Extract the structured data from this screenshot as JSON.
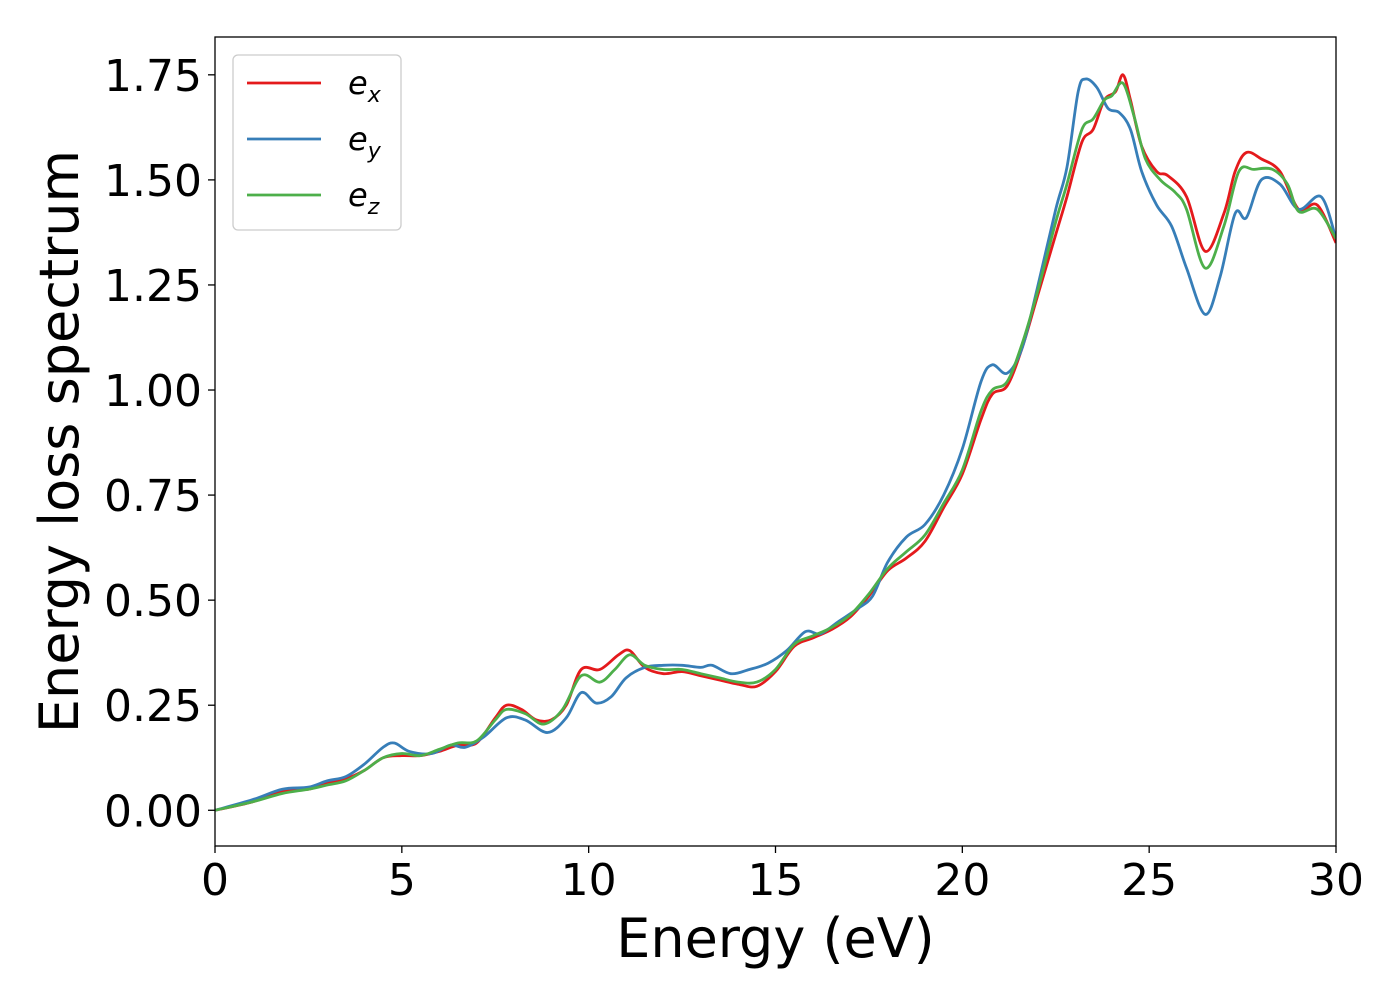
{
  "chart_data": {
    "type": "line",
    "xlabel": "Energy (eV)",
    "ylabel": "Energy loss spectrum",
    "xlim": [
      0,
      30
    ],
    "ylim": [
      -0.085,
      1.84
    ],
    "xticks": [
      0,
      5,
      10,
      15,
      20,
      25,
      30
    ],
    "xtick_labels": [
      "0",
      "5",
      "10",
      "15",
      "20",
      "25",
      "30"
    ],
    "yticks": [
      0.0,
      0.25,
      0.5,
      0.75,
      1.0,
      1.25,
      1.5,
      1.75
    ],
    "ytick_labels": [
      "0.00",
      "0.25",
      "0.50",
      "0.75",
      "1.00",
      "1.25",
      "1.50",
      "1.75"
    ],
    "grid": false,
    "legend_position": "top-left",
    "series": [
      {
        "name": "e",
        "name_sub": "x",
        "color": "#e41a1c",
        "points": [
          [
            0,
            0.0
          ],
          [
            1,
            0.02
          ],
          [
            1.8,
            0.045
          ],
          [
            2.5,
            0.05
          ],
          [
            3,
            0.065
          ],
          [
            3.5,
            0.075
          ],
          [
            4,
            0.095
          ],
          [
            4.5,
            0.125
          ],
          [
            5,
            0.13
          ],
          [
            5.5,
            0.13
          ],
          [
            6,
            0.14
          ],
          [
            6.5,
            0.155
          ],
          [
            7,
            0.16
          ],
          [
            7.5,
            0.22
          ],
          [
            7.8,
            0.25
          ],
          [
            8.2,
            0.24
          ],
          [
            8.6,
            0.215
          ],
          [
            9,
            0.215
          ],
          [
            9.4,
            0.25
          ],
          [
            9.8,
            0.335
          ],
          [
            10.3,
            0.335
          ],
          [
            10.8,
            0.37
          ],
          [
            11.1,
            0.38
          ],
          [
            11.5,
            0.34
          ],
          [
            12,
            0.325
          ],
          [
            12.5,
            0.33
          ],
          [
            13,
            0.32
          ],
          [
            13.5,
            0.31
          ],
          [
            14,
            0.3
          ],
          [
            14.5,
            0.295
          ],
          [
            15,
            0.33
          ],
          [
            15.5,
            0.39
          ],
          [
            16,
            0.41
          ],
          [
            16.5,
            0.43
          ],
          [
            17,
            0.46
          ],
          [
            17.5,
            0.51
          ],
          [
            18,
            0.57
          ],
          [
            18.5,
            0.6
          ],
          [
            19,
            0.64
          ],
          [
            19.5,
            0.72
          ],
          [
            20,
            0.8
          ],
          [
            20.5,
            0.93
          ],
          [
            20.8,
            0.99
          ],
          [
            21.2,
            1.01
          ],
          [
            21.6,
            1.1
          ],
          [
            22,
            1.22
          ],
          [
            22.5,
            1.37
          ],
          [
            22.8,
            1.46
          ],
          [
            23.2,
            1.59
          ],
          [
            23.5,
            1.62
          ],
          [
            23.8,
            1.69
          ],
          [
            24.1,
            1.71
          ],
          [
            24.3,
            1.75
          ],
          [
            24.5,
            1.69
          ],
          [
            24.8,
            1.58
          ],
          [
            25.2,
            1.52
          ],
          [
            25.5,
            1.51
          ],
          [
            26,
            1.46
          ],
          [
            26.5,
            1.33
          ],
          [
            27,
            1.42
          ],
          [
            27.3,
            1.52
          ],
          [
            27.6,
            1.565
          ],
          [
            28,
            1.55
          ],
          [
            28.5,
            1.52
          ],
          [
            29,
            1.43
          ],
          [
            29.5,
            1.44
          ],
          [
            30,
            1.35
          ]
        ]
      },
      {
        "name": "e",
        "name_sub": "y",
        "color": "#377eb8",
        "points": [
          [
            0,
            0.0
          ],
          [
            1,
            0.025
          ],
          [
            1.8,
            0.05
          ],
          [
            2.5,
            0.055
          ],
          [
            3,
            0.07
          ],
          [
            3.5,
            0.08
          ],
          [
            4,
            0.11
          ],
          [
            4.5,
            0.15
          ],
          [
            4.8,
            0.16
          ],
          [
            5.2,
            0.14
          ],
          [
            5.8,
            0.135
          ],
          [
            6.3,
            0.155
          ],
          [
            6.7,
            0.15
          ],
          [
            7.2,
            0.175
          ],
          [
            7.8,
            0.22
          ],
          [
            8.3,
            0.215
          ],
          [
            8.9,
            0.185
          ],
          [
            9.4,
            0.22
          ],
          [
            9.8,
            0.28
          ],
          [
            10.2,
            0.255
          ],
          [
            10.6,
            0.27
          ],
          [
            11,
            0.315
          ],
          [
            11.5,
            0.34
          ],
          [
            12,
            0.345
          ],
          [
            12.5,
            0.345
          ],
          [
            13,
            0.34
          ],
          [
            13.3,
            0.345
          ],
          [
            13.8,
            0.325
          ],
          [
            14.3,
            0.335
          ],
          [
            14.8,
            0.35
          ],
          [
            15.3,
            0.38
          ],
          [
            15.8,
            0.425
          ],
          [
            16.2,
            0.42
          ],
          [
            16.7,
            0.45
          ],
          [
            17.2,
            0.48
          ],
          [
            17.6,
            0.51
          ],
          [
            18,
            0.59
          ],
          [
            18.5,
            0.65
          ],
          [
            19,
            0.68
          ],
          [
            19.5,
            0.75
          ],
          [
            20,
            0.86
          ],
          [
            20.5,
            1.02
          ],
          [
            20.8,
            1.06
          ],
          [
            21.2,
            1.04
          ],
          [
            21.6,
            1.1
          ],
          [
            22,
            1.24
          ],
          [
            22.5,
            1.43
          ],
          [
            22.8,
            1.53
          ],
          [
            23.1,
            1.71
          ],
          [
            23.3,
            1.74
          ],
          [
            23.6,
            1.72
          ],
          [
            23.9,
            1.67
          ],
          [
            24.2,
            1.66
          ],
          [
            24.5,
            1.62
          ],
          [
            24.8,
            1.52
          ],
          [
            25.2,
            1.44
          ],
          [
            25.6,
            1.39
          ],
          [
            26,
            1.29
          ],
          [
            26.5,
            1.18
          ],
          [
            26.9,
            1.27
          ],
          [
            27.3,
            1.42
          ],
          [
            27.6,
            1.41
          ],
          [
            28,
            1.5
          ],
          [
            28.5,
            1.49
          ],
          [
            29,
            1.43
          ],
          [
            29.6,
            1.46
          ],
          [
            30,
            1.36
          ]
        ]
      },
      {
        "name": "e",
        "name_sub": "z",
        "color": "#4daf4a",
        "points": [
          [
            0,
            0.0
          ],
          [
            1,
            0.02
          ],
          [
            1.8,
            0.04
          ],
          [
            2.5,
            0.05
          ],
          [
            3,
            0.06
          ],
          [
            3.5,
            0.07
          ],
          [
            4,
            0.095
          ],
          [
            4.5,
            0.125
          ],
          [
            5,
            0.135
          ],
          [
            5.5,
            0.13
          ],
          [
            6,
            0.145
          ],
          [
            6.5,
            0.16
          ],
          [
            7,
            0.165
          ],
          [
            7.5,
            0.215
          ],
          [
            7.8,
            0.24
          ],
          [
            8.3,
            0.23
          ],
          [
            8.8,
            0.205
          ],
          [
            9.3,
            0.24
          ],
          [
            9.8,
            0.32
          ],
          [
            10.3,
            0.305
          ],
          [
            10.7,
            0.335
          ],
          [
            11.1,
            0.37
          ],
          [
            11.5,
            0.345
          ],
          [
            12,
            0.335
          ],
          [
            12.5,
            0.335
          ],
          [
            13,
            0.325
          ],
          [
            13.5,
            0.315
          ],
          [
            14,
            0.305
          ],
          [
            14.5,
            0.305
          ],
          [
            15,
            0.335
          ],
          [
            15.5,
            0.395
          ],
          [
            16,
            0.415
          ],
          [
            16.5,
            0.435
          ],
          [
            17,
            0.465
          ],
          [
            17.5,
            0.515
          ],
          [
            18,
            0.575
          ],
          [
            18.5,
            0.615
          ],
          [
            19,
            0.655
          ],
          [
            19.5,
            0.73
          ],
          [
            20,
            0.81
          ],
          [
            20.5,
            0.95
          ],
          [
            20.8,
            1.0
          ],
          [
            21.2,
            1.02
          ],
          [
            21.6,
            1.11
          ],
          [
            22,
            1.23
          ],
          [
            22.5,
            1.4
          ],
          [
            22.8,
            1.49
          ],
          [
            23.2,
            1.62
          ],
          [
            23.5,
            1.645
          ],
          [
            23.8,
            1.69
          ],
          [
            24,
            1.7
          ],
          [
            24.3,
            1.73
          ],
          [
            24.6,
            1.65
          ],
          [
            24.9,
            1.55
          ],
          [
            25.3,
            1.5
          ],
          [
            25.7,
            1.47
          ],
          [
            26,
            1.43
          ],
          [
            26.5,
            1.29
          ],
          [
            27,
            1.39
          ],
          [
            27.4,
            1.52
          ],
          [
            27.8,
            1.525
          ],
          [
            28.3,
            1.525
          ],
          [
            28.7,
            1.49
          ],
          [
            29,
            1.425
          ],
          [
            29.5,
            1.43
          ],
          [
            30,
            1.36
          ]
        ]
      }
    ]
  }
}
